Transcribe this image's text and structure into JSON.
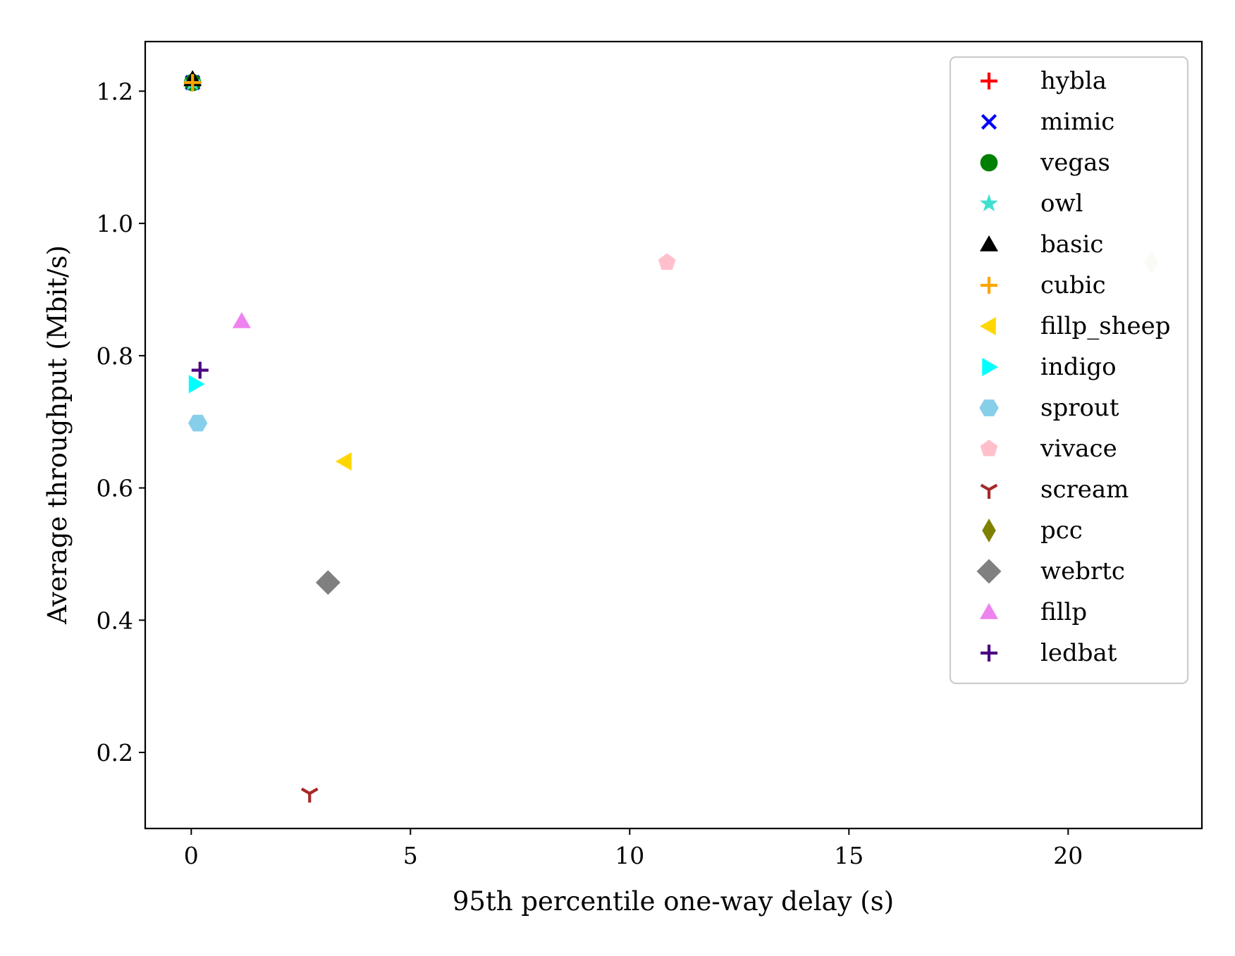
{
  "chart_data": {
    "type": "scatter",
    "xlabel": "95th percentile one-way delay (s)",
    "ylabel": "Average throughput (Mbit/s)",
    "xlim": [
      -1.05,
      23.05
    ],
    "ylim": [
      0.085,
      1.275
    ],
    "xticks": [
      {
        "value": 0,
        "label": "0"
      },
      {
        "value": 5,
        "label": "5"
      },
      {
        "value": 10,
        "label": "10"
      },
      {
        "value": 15,
        "label": "15"
      },
      {
        "value": 20,
        "label": "20"
      }
    ],
    "yticks": [
      {
        "value": 0.2,
        "label": "0.2"
      },
      {
        "value": 0.4,
        "label": "0.4"
      },
      {
        "value": 0.6,
        "label": "0.6"
      },
      {
        "value": 0.8,
        "label": "0.8"
      },
      {
        "value": 1.0,
        "label": "1.0"
      },
      {
        "value": 1.2,
        "label": "1.2"
      }
    ],
    "grid": false,
    "legend_position": "top-right",
    "series": [
      {
        "name": "hybla",
        "marker": "plus",
        "color": "#ff0000",
        "x": 0.03,
        "y": 1.213
      },
      {
        "name": "mimic",
        "marker": "x",
        "color": "#0000ff",
        "x": 0.03,
        "y": 1.213
      },
      {
        "name": "vegas",
        "marker": "circle",
        "color": "#008000",
        "x": 0.03,
        "y": 1.213
      },
      {
        "name": "owl",
        "marker": "star",
        "color": "#40e0d0",
        "x": 0.03,
        "y": 1.213
      },
      {
        "name": "basic",
        "marker": "triangle-up",
        "color": "#000000",
        "x": 0.03,
        "y": 1.218
      },
      {
        "name": "cubic",
        "marker": "plus",
        "color": "#ffa500",
        "x": 0.03,
        "y": 1.213
      },
      {
        "name": "fillp_sheep",
        "marker": "triangle-left",
        "color": "#ffd700",
        "x": 3.5,
        "y": 0.64
      },
      {
        "name": "indigo",
        "marker": "triangle-right",
        "color": "#00ffff",
        "x": 0.1,
        "y": 0.757
      },
      {
        "name": "sprout",
        "marker": "hexagon",
        "color": "#87ceeb",
        "x": 0.15,
        "y": 0.698
      },
      {
        "name": "vivace",
        "marker": "pentagon",
        "color": "#ffc0cb",
        "x": 10.85,
        "y": 0.941
      },
      {
        "name": "scream",
        "marker": "tri-down",
        "color": "#a52a2a",
        "x": 2.7,
        "y": 0.138
      },
      {
        "name": "pcc",
        "marker": "thin-diamond",
        "color": "#808000",
        "x": 21.9,
        "y": 0.941
      },
      {
        "name": "webrtc",
        "marker": "diamond",
        "color": "#808080",
        "x": 3.12,
        "y": 0.457
      },
      {
        "name": "fillp",
        "marker": "triangle-up",
        "color": "#ee82ee",
        "x": 1.15,
        "y": 0.852
      },
      {
        "name": "ledbat",
        "marker": "plus",
        "color": "#4b0082",
        "x": 0.2,
        "y": 0.778
      }
    ],
    "faded_series": [
      "pcc"
    ],
    "faded_color": "#e5e5d3"
  }
}
